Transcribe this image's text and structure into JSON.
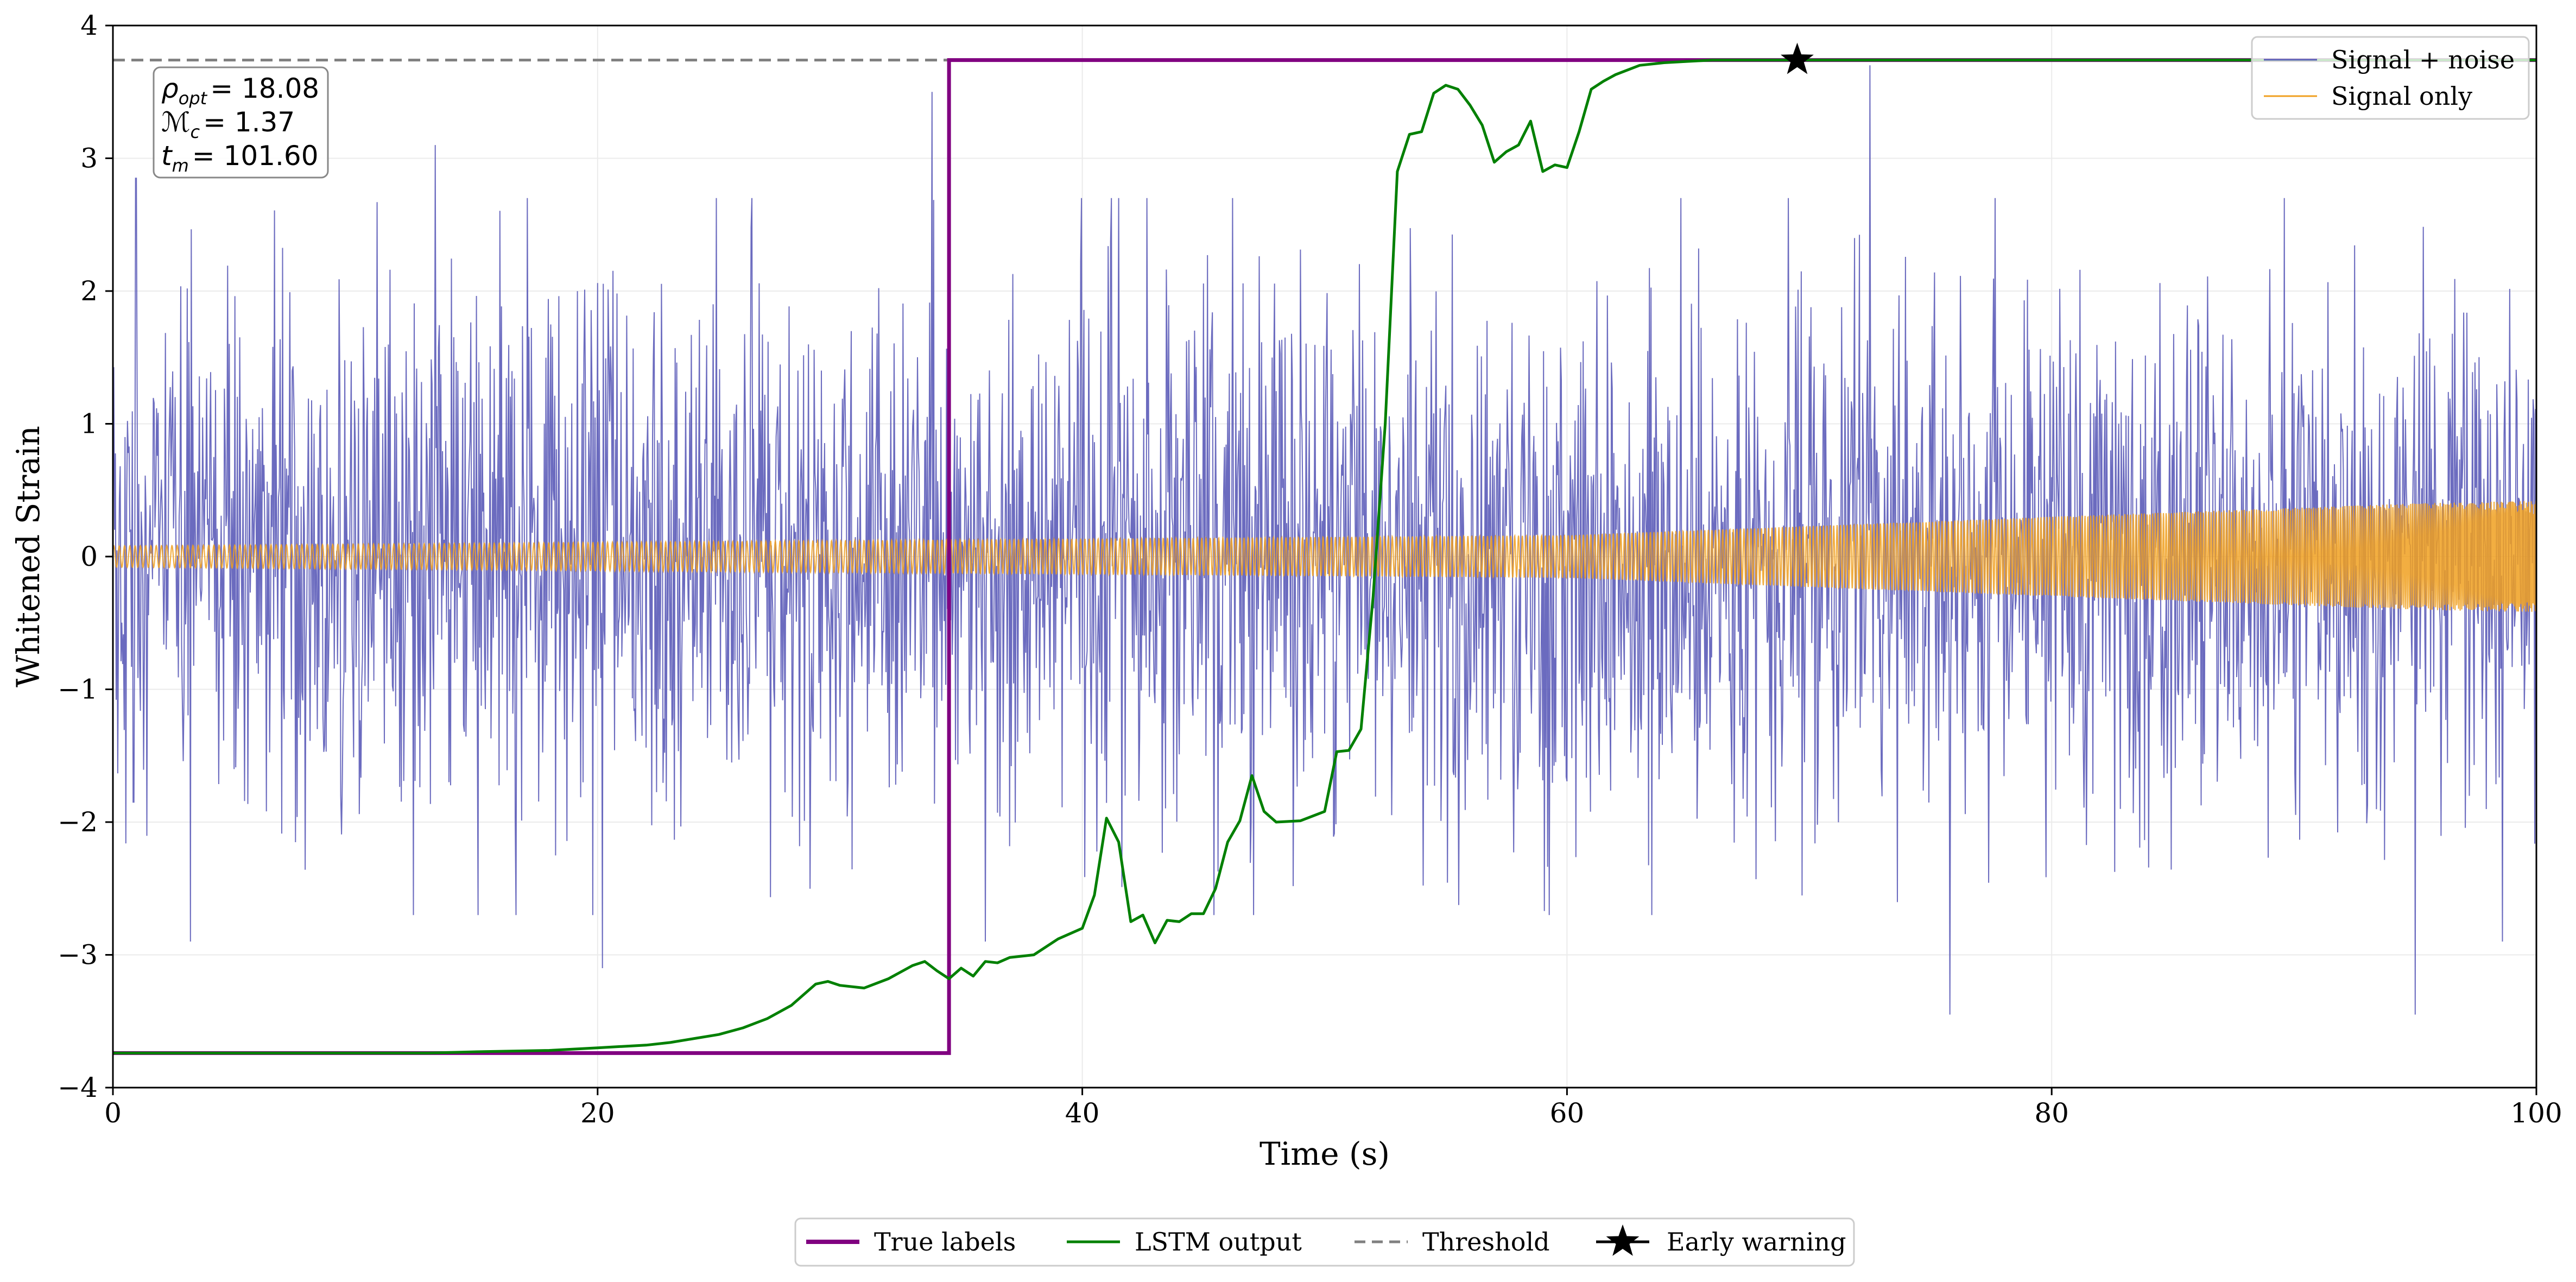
{
  "chart_data": {
    "type": "line",
    "title": "",
    "xlabel": "Time (s)",
    "ylabel": "Whitened Strain",
    "xlim": [
      0,
      100
    ],
    "ylim": [
      -4,
      4
    ],
    "xticks": [
      0,
      20,
      40,
      60,
      80,
      100
    ],
    "xtick_labels": [
      "0",
      "20",
      "40",
      "60",
      "80",
      "100"
    ],
    "yticks": [
      -4,
      -3,
      -2,
      -1,
      0,
      1,
      2,
      3,
      4
    ],
    "ytick_labels": [
      "−4",
      "−3",
      "−2",
      "−1",
      "0",
      "1",
      "2",
      "3",
      "4"
    ],
    "grid": true,
    "annotation": {
      "lines": [
        {
          "symbol": "ρ",
          "sub": "opt",
          "value": "= 18.08"
        },
        {
          "symbol": "ℳ",
          "sub": "c",
          "value": "= 1.37"
        },
        {
          "symbol": "t",
          "sub": "m",
          "value": "= 101.60"
        }
      ]
    },
    "legend_upper": {
      "placement": "upper-right",
      "entries": [
        {
          "label": "Signal + noise",
          "color": "#5b5bb8"
        },
        {
          "label": "Signal only",
          "color": "#f0a020"
        }
      ]
    },
    "legend_lower": {
      "placement": "below-center",
      "entries": [
        {
          "label": "True labels",
          "color": "#800080",
          "style": "solid"
        },
        {
          "label": "LSTM output",
          "color": "#008000",
          "style": "solid"
        },
        {
          "label": "Threshold",
          "color": "#808080",
          "style": "dashed"
        },
        {
          "label": "Early warning",
          "color": "#000000",
          "style": "star"
        }
      ]
    },
    "series": [
      {
        "name": "Signal + noise",
        "color": "#5b5bb8",
        "kind": "noise",
        "amplitude_std": 1.0,
        "x_range": [
          0,
          100
        ],
        "spikes": [
          [
            0.85,
            -1.85
          ],
          [
            0.95,
            2.85
          ],
          [
            3.2,
            -2.9
          ],
          [
            13.3,
            3.1
          ],
          [
            20.2,
            -3.1
          ],
          [
            33.8,
            3.5
          ],
          [
            36.0,
            -2.9
          ],
          [
            72.5,
            3.7
          ],
          [
            75.8,
            -3.45
          ],
          [
            95.0,
            -3.45
          ],
          [
            98.6,
            -2.9
          ]
        ]
      },
      {
        "name": "Signal only",
        "color": "#f0a020",
        "kind": "chirp",
        "x_range": [
          0,
          100
        ],
        "envelope": [
          [
            0,
            0.08
          ],
          [
            30,
            0.12
          ],
          [
            60,
            0.16
          ],
          [
            80,
            0.3
          ],
          [
            95,
            0.4
          ],
          [
            100,
            0.42
          ]
        ]
      },
      {
        "name": "True labels",
        "color": "#800080",
        "kind": "step",
        "x": [
          0,
          34.5,
          34.5,
          100
        ],
        "y": [
          -3.74,
          -3.74,
          3.74,
          3.74
        ]
      },
      {
        "name": "LSTM output",
        "color": "#008000",
        "kind": "line",
        "x": [
          0,
          5,
          10,
          13,
          15,
          18,
          19,
          20,
          21,
          22,
          23,
          24,
          25,
          26,
          27,
          28,
          29,
          29.5,
          30,
          31,
          32,
          33,
          33.5,
          34,
          34.5,
          35,
          35.5,
          36,
          36.5,
          37,
          38,
          39,
          40,
          40.5,
          41,
          41.5,
          42,
          42.5,
          43,
          43.5,
          44,
          44.5,
          45,
          45.5,
          46,
          46.5,
          47,
          47.5,
          48,
          49,
          50,
          50.5,
          51,
          51.5,
          52,
          52.5,
          53,
          53.5,
          54,
          54.5,
          55,
          55.5,
          56,
          56.5,
          57,
          57.5,
          58,
          58.5,
          59,
          59.5,
          60,
          60.5,
          61,
          61.5,
          62,
          63,
          64,
          65,
          66,
          68,
          70,
          100
        ],
        "y": [
          -3.74,
          -3.74,
          -3.74,
          -3.74,
          -3.73,
          -3.72,
          -3.71,
          -3.7,
          -3.69,
          -3.68,
          -3.66,
          -3.63,
          -3.6,
          -3.55,
          -3.48,
          -3.38,
          -3.22,
          -3.2,
          -3.23,
          -3.25,
          -3.18,
          -3.08,
          -3.05,
          -3.12,
          -3.18,
          -3.1,
          -3.16,
          -3.05,
          -3.06,
          -3.02,
          -3.0,
          -2.88,
          -2.8,
          -2.55,
          -1.97,
          -2.15,
          -2.75,
          -2.7,
          -2.91,
          -2.74,
          -2.75,
          -2.69,
          -2.69,
          -2.5,
          -2.15,
          -1.99,
          -1.65,
          -1.92,
          -2.0,
          -1.99,
          -1.92,
          -1.47,
          -1.46,
          -1.3,
          -0.3,
          1.0,
          2.9,
          3.18,
          3.2,
          3.49,
          3.55,
          3.52,
          3.4,
          3.25,
          2.97,
          3.05,
          3.1,
          3.28,
          2.9,
          2.95,
          2.93,
          3.2,
          3.52,
          3.58,
          3.63,
          3.7,
          3.72,
          3.73,
          3.74,
          3.74,
          3.74,
          3.74
        ]
      },
      {
        "name": "Threshold",
        "color": "#808080",
        "kind": "hline",
        "y": 3.74
      },
      {
        "name": "Early warning",
        "color": "#000000",
        "kind": "marker",
        "x": 69.5,
        "y": 3.74
      }
    ]
  }
}
